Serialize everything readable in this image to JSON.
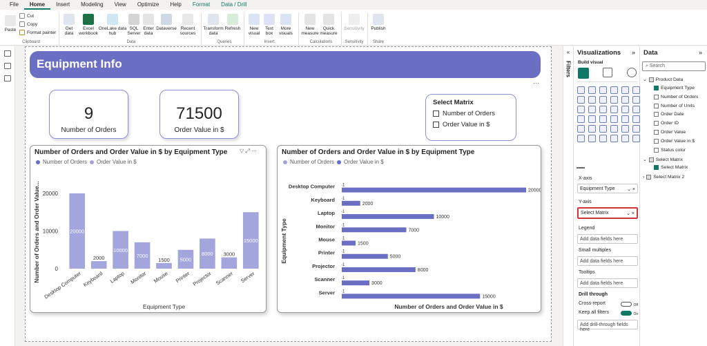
{
  "menu": [
    "File",
    "Home",
    "Insert",
    "Modeling",
    "View",
    "Optimize",
    "Help",
    "Format",
    "Data / Drill"
  ],
  "ribbon": {
    "clipboard": {
      "paste": "Paste",
      "cut": "Cut",
      "copy": "Copy",
      "format_painter": "Format painter",
      "group": "Clipboard"
    },
    "data": {
      "get_data": "Get data",
      "excel": "Excel workbook",
      "onelake": "OneLake data hub",
      "sql": "SQL Server",
      "enter": "Enter data",
      "dataverse": "Dataverse",
      "recent": "Recent sources",
      "group": "Data"
    },
    "queries": {
      "transform": "Transform data",
      "refresh": "Refresh",
      "group": "Queries"
    },
    "insert": {
      "new_visual": "New visual",
      "text_box": "Text box",
      "more_visuals": "More visuals",
      "group": "Insert"
    },
    "calc": {
      "new_measure": "New measure",
      "quick_measure": "Quick measure",
      "group": "Calculations"
    },
    "sensitivity": {
      "label": "Sensitivity",
      "group": "Sensitivity"
    },
    "share": {
      "publish": "Publish",
      "group": "Share"
    }
  },
  "report": {
    "title": "Equipment Info",
    "card1": {
      "value": "9",
      "label": "Number of Orders"
    },
    "card2": {
      "value": "71500",
      "label": "Order Value in $"
    },
    "slicer": {
      "title": "Select Matrix",
      "options": [
        "Number of Orders",
        "Order Value in $"
      ]
    }
  },
  "chart_data": [
    {
      "type": "bar",
      "title": "Number of Orders and Order Value in $ by Equipment Type",
      "legend": [
        "Number of Orders",
        "Order Value in $"
      ],
      "categories": [
        "Desktop Computer",
        "Keyboard",
        "Laptop",
        "Monitor",
        "Mouse",
        "Printer",
        "Projector",
        "Scanner",
        "Server"
      ],
      "series": [
        {
          "name": "Number of Orders",
          "values": [
            1,
            1,
            1,
            1,
            1,
            1,
            1,
            1,
            1
          ]
        },
        {
          "name": "Order Value in $",
          "values": [
            20000,
            2000,
            10000,
            7000,
            1500,
            5000,
            8000,
            3000,
            15000
          ]
        }
      ],
      "xlabel": "Equipment Type",
      "ylabel": "Number of Orders and Order Value...",
      "ylim": [
        0,
        20000
      ],
      "yticks": [
        "0",
        "10000",
        "20000"
      ],
      "colors": [
        "#6b6fc4",
        "#a3a6dd"
      ]
    },
    {
      "type": "bar",
      "orientation": "horizontal",
      "title": "Number of Orders and Order Value in $ by Equipment Type",
      "legend": [
        "Number of Orders",
        "Order Value in $"
      ],
      "categories": [
        "Desktop Computer",
        "Keyboard",
        "Laptop",
        "Monitor",
        "Mouse",
        "Printer",
        "Projector",
        "Scanner",
        "Server"
      ],
      "series": [
        {
          "name": "Number of Orders",
          "values": [
            1,
            1,
            1,
            1,
            1,
            1,
            1,
            1,
            1
          ]
        },
        {
          "name": "Order Value in $",
          "values": [
            20000,
            2000,
            10000,
            7000,
            1500,
            5000,
            8000,
            3000,
            15000
          ]
        }
      ],
      "xlabel": "Number of Orders and Order Value in $",
      "ylabel": "Equipment Type",
      "xlim": [
        0,
        20000
      ],
      "colors": [
        "#a3a6dd",
        "#6b6fc4"
      ]
    }
  ],
  "filters_label": "Filters",
  "viz": {
    "title": "Visualizations",
    "build": "Build visual",
    "xaxis_label": "X-axis",
    "xaxis_value": "Equipment Type",
    "yaxis_label": "Y-axis",
    "yaxis_value": "Select Matrix",
    "legend_label": "Legend",
    "add_fields": "Add data fields here",
    "small_multiples": "Small multiples",
    "tooltips": "Tooltips",
    "drill": "Drill through",
    "cross_report": "Cross-report",
    "cross_state": "Off",
    "keep_filters": "Keep all filters",
    "keep_state": "On",
    "add_drill": "Add drill-through fields here"
  },
  "data_pane": {
    "title": "Data",
    "search": "Search",
    "table1": "Product Data",
    "fields": [
      "Equipment Type",
      "Number of Orders",
      "Number of Units",
      "Order Date",
      "Order ID",
      "Order Value",
      "Order Value in $",
      "Status color"
    ],
    "table2": "Select Matrix",
    "table2_field": "Select Matrix",
    "table3": "Select Matrix 2"
  }
}
